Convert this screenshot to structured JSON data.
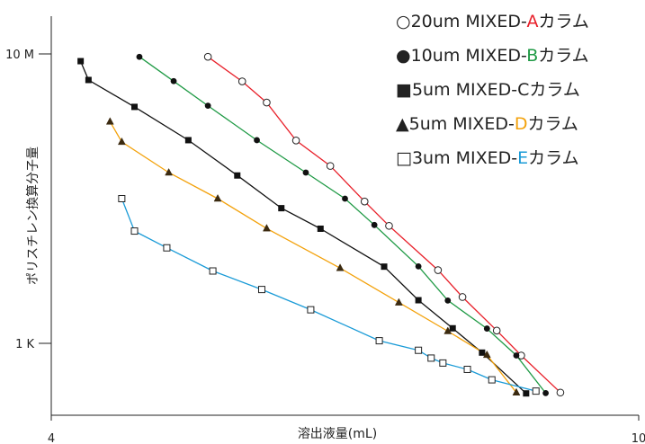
{
  "chart_data": {
    "type": "line",
    "title": "",
    "xlabel": "溶出液量(mL)",
    "ylabel": "ポリスチレン換算分子量",
    "xlim": [
      4,
      10
    ],
    "x_ticks": [
      {
        "value": 4,
        "label": "4"
      },
      {
        "value": 10,
        "label": "10"
      }
    ],
    "y_ticks": [
      {
        "value": 1,
        "label": "10 M"
      },
      {
        "value": 0,
        "label": "1 K"
      }
    ],
    "series": [
      {
        "name": "20um MIXED-Aカラム",
        "legend": {
          "symbol": "○",
          "prefix": "20um MIXED-",
          "letter": "A",
          "suffix": "カラム"
        },
        "marker": "circle-open",
        "color": "#e8202a",
        "letter_color": "#e8202a",
        "points": [
          [
            5.6,
            0.99
          ],
          [
            5.95,
            0.905
          ],
          [
            6.2,
            0.832
          ],
          [
            6.5,
            0.701
          ],
          [
            6.85,
            0.613
          ],
          [
            7.2,
            0.49
          ],
          [
            7.45,
            0.406
          ],
          [
            7.95,
            0.253
          ],
          [
            8.2,
            0.16
          ],
          [
            8.55,
            0.044
          ],
          [
            8.8,
            -0.042
          ],
          [
            9.2,
            -0.17
          ]
        ]
      },
      {
        "name": "10um MIXED-Bカラム",
        "legend": {
          "symbol": "●",
          "prefix": "10um MIXED-",
          "letter": "B",
          "suffix": "カラム"
        },
        "marker": "circle-filled",
        "color": "#1f9a45",
        "letter_color": "#1f9a45",
        "points": [
          [
            4.9,
            0.99
          ],
          [
            5.25,
            0.906
          ],
          [
            5.6,
            0.821
          ],
          [
            6.1,
            0.702
          ],
          [
            6.6,
            0.59
          ],
          [
            7.0,
            0.5
          ],
          [
            7.3,
            0.409
          ],
          [
            7.75,
            0.266
          ],
          [
            8.05,
            0.148
          ],
          [
            8.45,
            0.051
          ],
          [
            8.75,
            -0.042
          ],
          [
            9.05,
            -0.172
          ]
        ]
      },
      {
        "name": "5um MIXED-Cカラム",
        "legend": {
          "symbol": "■",
          "prefix": "5um MIXED-",
          "letter": "C",
          "suffix": "カラム"
        },
        "marker": "square-filled",
        "color": "#111111",
        "letter_color": "#222222",
        "points": [
          [
            4.3,
            0.975
          ],
          [
            4.38,
            0.91
          ],
          [
            4.85,
            0.817
          ],
          [
            5.4,
            0.702
          ],
          [
            5.9,
            0.58
          ],
          [
            6.35,
            0.467
          ],
          [
            6.75,
            0.396
          ],
          [
            7.4,
            0.265
          ],
          [
            7.75,
            0.149
          ],
          [
            8.1,
            0.052
          ],
          [
            8.4,
            -0.032
          ],
          [
            8.85,
            -0.173
          ]
        ]
      },
      {
        "name": "5um MIXED-Dカラム",
        "legend": {
          "symbol": "▲",
          "prefix": "5um MIXED-",
          "letter": "D",
          "suffix": "カラム"
        },
        "marker": "triangle-filled",
        "color": "#f3a20c",
        "letter_color": "#f3a20c",
        "points": [
          [
            4.6,
            0.766
          ],
          [
            4.72,
            0.696
          ],
          [
            5.2,
            0.59
          ],
          [
            5.7,
            0.5
          ],
          [
            6.2,
            0.397
          ],
          [
            6.95,
            0.26
          ],
          [
            7.55,
            0.141
          ],
          [
            8.05,
            0.042
          ],
          [
            8.45,
            -0.04
          ],
          [
            8.75,
            -0.17
          ]
        ]
      },
      {
        "name": "3um MIXED-Eカラム",
        "legend": {
          "symbol": "□",
          "prefix": "3um MIXED-",
          "letter": "E",
          "suffix": "カラム"
        },
        "marker": "square-open",
        "color": "#1a9bd7",
        "letter_color": "#1a9bd7",
        "points": [
          [
            4.72,
            0.5
          ],
          [
            4.85,
            0.388
          ],
          [
            5.18,
            0.33
          ],
          [
            5.65,
            0.25
          ],
          [
            6.15,
            0.186
          ],
          [
            6.65,
            0.116
          ],
          [
            7.35,
            0.009
          ],
          [
            7.75,
            -0.024
          ],
          [
            7.88,
            -0.051
          ],
          [
            8.0,
            -0.068
          ],
          [
            8.25,
            -0.09
          ],
          [
            8.5,
            -0.126
          ],
          [
            8.95,
            -0.165
          ]
        ]
      }
    ]
  }
}
